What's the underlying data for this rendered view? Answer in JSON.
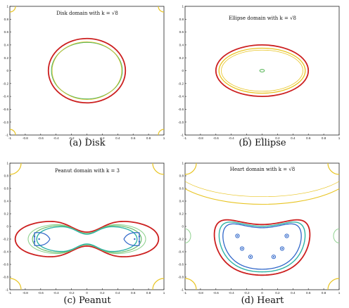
{
  "colors": {
    "red": "#cc1f1f",
    "yellow": "#e8c421",
    "green": "#5db85d",
    "teal": "#2fb3a5",
    "blue": "#2f66c9",
    "lightgreen": "#8fd18f"
  },
  "chart_data": [
    {
      "type": "contour",
      "panel": "a",
      "title": "Disk domain with k = √8",
      "caption": "(a)  Disk",
      "xlim": [
        -1,
        1
      ],
      "ylim": [
        -1,
        1
      ],
      "xticks": [
        "-1",
        "-0.8",
        "-0.6",
        "-0.4",
        "-0.2",
        "0",
        "0.2",
        "0.4",
        "0.6",
        "0.8",
        "1"
      ],
      "yticks": [
        "1",
        "0.8",
        "0.6",
        "0.4",
        "0.2",
        "0",
        "-0.2",
        "-0.4",
        "-0.6",
        "-0.8",
        "-1"
      ],
      "curves": [
        {
          "kind": "ellipse",
          "cx": 0,
          "cy": 0,
          "rx": 0.5,
          "ry": 0.5,
          "color": "red",
          "width": 1.8
        },
        {
          "kind": "ellipse",
          "cx": 0,
          "cy": 0,
          "rx": 0.46,
          "ry": 0.44,
          "color": "green",
          "width": 1.2
        },
        {
          "kind": "ellipse",
          "cx": 0,
          "cy": 0,
          "rx": 0.45,
          "ry": 0.45,
          "color": "yellow",
          "width": 0.6
        }
      ]
    },
    {
      "type": "contour",
      "panel": "b",
      "title": "Ellipse domain with k = √8",
      "caption": "(b)  Ellipse",
      "xlim": [
        -1,
        1
      ],
      "ylim": [
        -1,
        1
      ],
      "xticks": [
        "-1",
        "-0.8",
        "-0.6",
        "-0.4",
        "-0.2",
        "0",
        "0.2",
        "0.4",
        "0.6",
        "0.8",
        "1"
      ],
      "yticks": [
        "1",
        "0.8",
        "0.6",
        "0.4",
        "0.2",
        "0",
        "-0.2",
        "-0.4",
        "-0.6",
        "-0.8",
        "-1"
      ],
      "curves": [
        {
          "kind": "ellipse",
          "cx": 0,
          "cy": 0,
          "rx": 0.6,
          "ry": 0.4,
          "color": "red",
          "width": 1.8
        },
        {
          "kind": "ellipse",
          "cx": 0,
          "cy": 0,
          "rx": 0.56,
          "ry": 0.35,
          "color": "yellow",
          "width": 1.3
        },
        {
          "kind": "ellipse",
          "cx": 0,
          "cy": 0,
          "rx": 0.53,
          "ry": 0.32,
          "color": "yellow",
          "width": 0.8
        },
        {
          "kind": "ellipse",
          "cx": 0,
          "cy": 0.0,
          "rx": 0.03,
          "ry": 0.02,
          "color": "green",
          "width": 1.1
        }
      ]
    },
    {
      "type": "contour",
      "panel": "c",
      "title": "Peanut domain with k = 3",
      "caption": "(c)  Peanut",
      "xlim": [
        -1,
        1
      ],
      "ylim": [
        -1,
        1
      ],
      "xticks": [
        "-1",
        "-0.8",
        "-0.6",
        "-0.4",
        "-0.2",
        "0",
        "0.2",
        "0.4",
        "0.6",
        "0.8",
        "1"
      ],
      "yticks": [
        "1",
        "0.8",
        "0.6",
        "0.4",
        "0.2",
        "0",
        "-0.2",
        "-0.4",
        "-0.6",
        "-0.8",
        "-1"
      ],
      "curves": [
        {
          "kind": "peanut",
          "scale": 1.0,
          "color": "red",
          "width": 1.8
        },
        {
          "kind": "peanut",
          "scale": 0.82,
          "color": "lightgreen",
          "width": 1.1
        },
        {
          "kind": "peanut",
          "scale": 0.76,
          "color": "green",
          "width": 1.1
        },
        {
          "kind": "peanut",
          "scale": 0.7,
          "color": "teal",
          "width": 1.4
        }
      ]
    },
    {
      "type": "contour",
      "panel": "d",
      "title": "Heart domain with k = √8",
      "caption": "(d)  Heart",
      "xlim": [
        -1,
        1
      ],
      "ylim": [
        -1,
        1
      ],
      "xticks": [
        "-1",
        "-0.8",
        "-0.6",
        "-0.4",
        "-0.2",
        "0",
        "0.2",
        "0.4",
        "0.6",
        "0.8",
        "1"
      ],
      "yticks": [
        "1",
        "0.8",
        "0.6",
        "0.4",
        "0.2",
        "0",
        "-0.2",
        "-0.4",
        "-0.6",
        "-0.8",
        "-1"
      ],
      "curves": [
        {
          "kind": "heart",
          "scale": 1.0,
          "color": "red",
          "width": 1.8
        },
        {
          "kind": "heart",
          "scale": 0.9,
          "color": "teal",
          "width": 1.4
        },
        {
          "kind": "heart",
          "scale": 0.82,
          "color": "blue",
          "width": 1.3
        },
        {
          "kind": "ellipse",
          "cx": 0,
          "cy": 0.9,
          "rx": 1.2,
          "ry": 0.55,
          "color": "yellow",
          "width": 1.1
        },
        {
          "kind": "ellipse",
          "cx": 0,
          "cy": 0.95,
          "rx": 1.15,
          "ry": 0.48,
          "color": "yellow",
          "width": 0.7
        }
      ]
    }
  ]
}
